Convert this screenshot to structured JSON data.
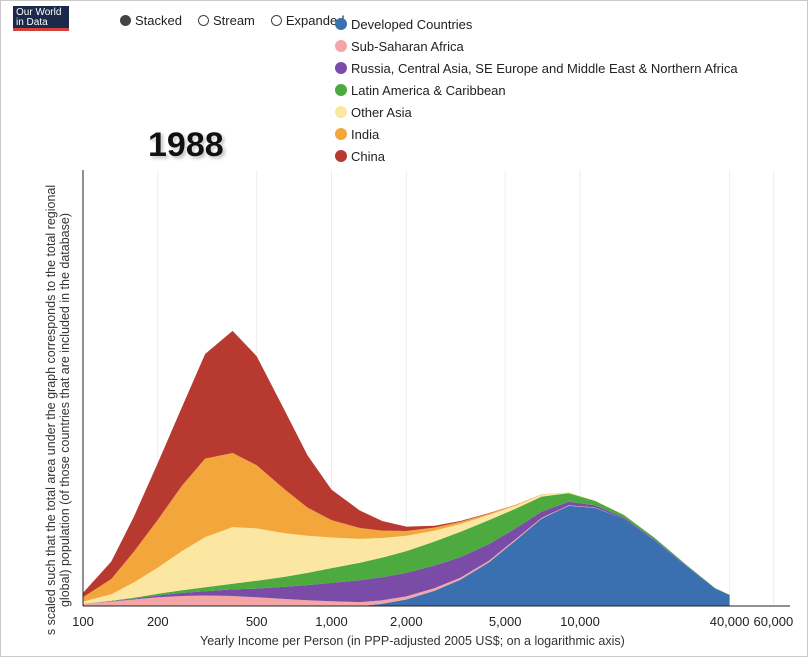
{
  "brand": {
    "line1": "Our World",
    "line2": "in Data"
  },
  "controls": [
    {
      "label": "Stacked",
      "selected": true
    },
    {
      "label": "Stream",
      "selected": false
    },
    {
      "label": "Expanded",
      "selected": false
    }
  ],
  "year": "1988",
  "chart_data": {
    "type": "area",
    "stacked": true,
    "xlabel": "Yearly Income per Person (in PPP-adjusted 2005 US$; on a logarithmic axis)",
    "ylabel_line1": "s scaled such that the total area under the graph corresponds to the total regional",
    "ylabel_line2": "global) population (of those countries that are included in the database)",
    "xscale": "log",
    "xlim": [
      100,
      70000
    ],
    "ylim": [
      0,
      1
    ],
    "grid": "vertical",
    "legend": "top",
    "xticks": [
      {
        "value": 100,
        "label": "100"
      },
      {
        "value": 200,
        "label": "200"
      },
      {
        "value": 500,
        "label": "500"
      },
      {
        "value": 1000,
        "label": "1,000"
      },
      {
        "value": 2000,
        "label": "2,000"
      },
      {
        "value": 5000,
        "label": "5,000"
      },
      {
        "value": 10000,
        "label": "10,000"
      },
      {
        "value": 40000,
        "label": "40,000"
      },
      {
        "value": 60000,
        "label": "60,000"
      }
    ],
    "x": [
      100,
      130,
      160,
      200,
      250,
      310,
      400,
      500,
      650,
      800,
      1000,
      1300,
      1600,
      2000,
      2600,
      3300,
      4300,
      5500,
      7000,
      9000,
      11500,
      15000,
      20000,
      27000,
      35000,
      40000
    ],
    "series": [
      {
        "name": "Developed Countries",
        "color": "#3a6fb0",
        "values": [
          0,
          0,
          0,
          0,
          0,
          0,
          0,
          0,
          0,
          0,
          0,
          0,
          0.005,
          0.015,
          0.035,
          0.06,
          0.1,
          0.15,
          0.2,
          0.23,
          0.225,
          0.2,
          0.15,
          0.09,
          0.04,
          0.025
        ]
      },
      {
        "name": "Sub-Saharan Africa",
        "color": "#f4a6a6",
        "values": [
          0.005,
          0.01,
          0.015,
          0.02,
          0.023,
          0.024,
          0.023,
          0.02,
          0.016,
          0.013,
          0.011,
          0.009,
          0.008,
          0.007,
          0.006,
          0.005,
          0.004,
          0.003,
          0.002,
          0.001,
          0.001,
          0,
          0,
          0,
          0,
          0
        ]
      },
      {
        "name": "Russia, Central Asia, SE Europe and Middle East & Northern Africa",
        "color": "#7b4ba8",
        "values": [
          0,
          0.001,
          0.002,
          0.004,
          0.007,
          0.01,
          0.015,
          0.02,
          0.028,
          0.035,
          0.042,
          0.05,
          0.053,
          0.054,
          0.052,
          0.047,
          0.038,
          0.025,
          0.014,
          0.008,
          0.005,
          0.003,
          0.002,
          0.001,
          0,
          0
        ]
      },
      {
        "name": "Latin America & Caribbean",
        "color": "#4caa3f",
        "values": [
          0,
          0.001,
          0.002,
          0.004,
          0.006,
          0.009,
          0.013,
          0.018,
          0.023,
          0.028,
          0.034,
          0.04,
          0.045,
          0.05,
          0.055,
          0.058,
          0.055,
          0.045,
          0.035,
          0.02,
          0.01,
          0.006,
          0.004,
          0.002,
          0.001,
          0.001
        ]
      },
      {
        "name": "Other Asia",
        "color": "#fbe6a2",
        "values": [
          0.005,
          0.015,
          0.035,
          0.06,
          0.09,
          0.115,
          0.13,
          0.12,
          0.1,
          0.085,
          0.07,
          0.055,
          0.045,
          0.035,
          0.025,
          0.018,
          0.012,
          0.007,
          0.004,
          0.002,
          0.001,
          0,
          0,
          0,
          0,
          0
        ]
      },
      {
        "name": "India",
        "color": "#f3a63b",
        "values": [
          0.01,
          0.035,
          0.07,
          0.11,
          0.15,
          0.18,
          0.17,
          0.145,
          0.1,
          0.065,
          0.04,
          0.025,
          0.017,
          0.011,
          0.007,
          0.005,
          0.003,
          0.002,
          0.001,
          0,
          0,
          0,
          0,
          0,
          0,
          0
        ]
      },
      {
        "name": "China",
        "color": "#b8392f",
        "values": [
          0.01,
          0.04,
          0.08,
          0.13,
          0.18,
          0.24,
          0.28,
          0.25,
          0.18,
          0.12,
          0.07,
          0.04,
          0.022,
          0.01,
          0.004,
          0.002,
          0.001,
          0,
          0,
          0,
          0,
          0,
          0,
          0,
          0,
          0
        ]
      }
    ]
  }
}
